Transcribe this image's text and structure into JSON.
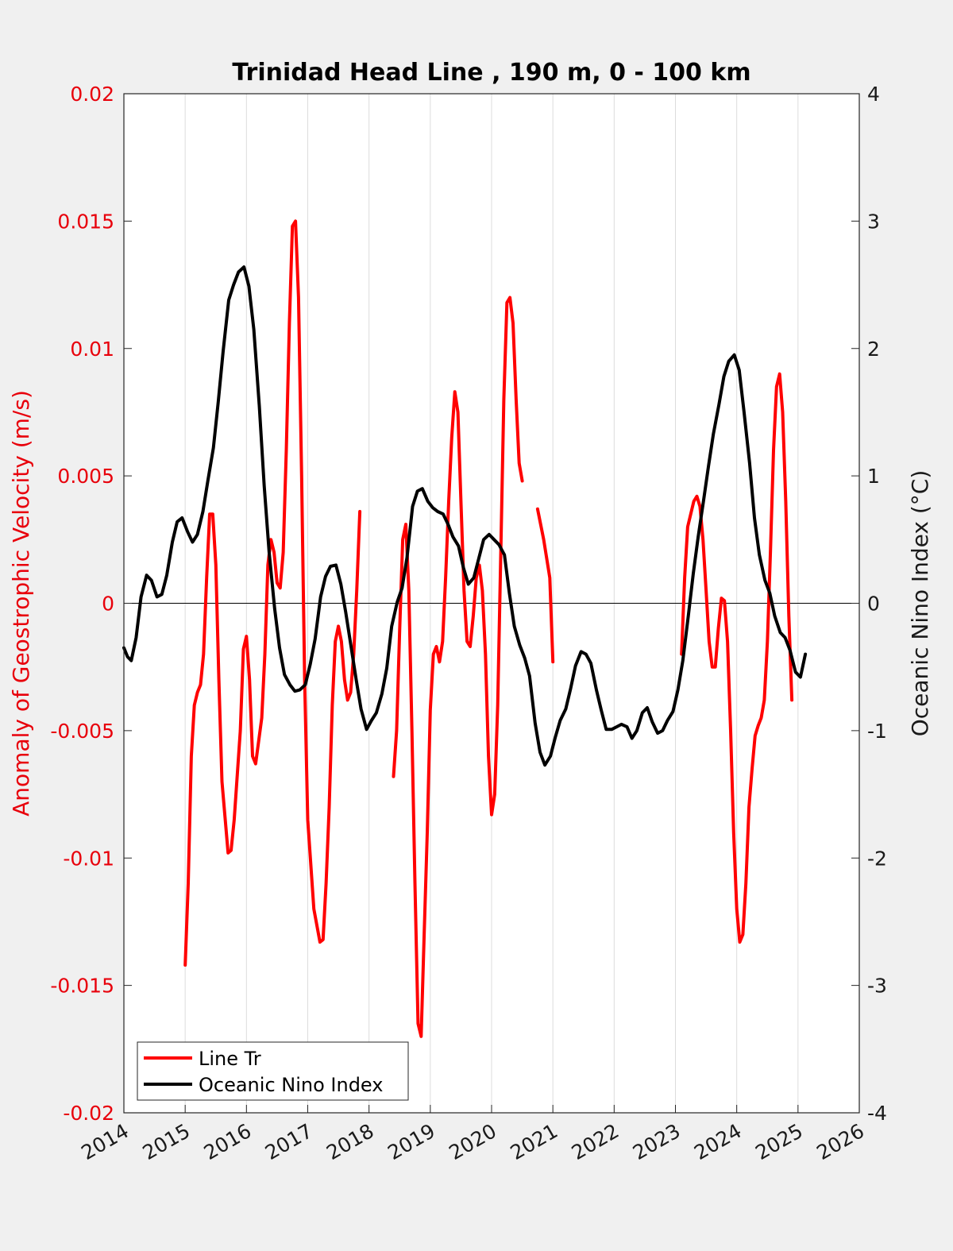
{
  "chart_data": {
    "type": "line",
    "title": "Trinidad Head Line , 190 m, 0 - 100 km",
    "ylabel_left": "Anomaly of Geostrophic Velocity (m/s)",
    "ylabel_right": "Oceanic Nino Index (°C)",
    "xlabel": "",
    "xlim": [
      2014,
      2026
    ],
    "ylim_left": [
      -0.02,
      0.02
    ],
    "ylim_right": [
      -4,
      4
    ],
    "x_ticks": [
      "2014",
      "2015",
      "2016",
      "2017",
      "2018",
      "2019",
      "2020",
      "2021",
      "2022",
      "2023",
      "2024",
      "2025",
      "2026"
    ],
    "y_ticks_left": [
      "0.02",
      "0.015",
      "0.01",
      "0.005",
      "0",
      "-0.005",
      "-0.01",
      "-0.015",
      "-0.02"
    ],
    "y_ticks_right": [
      "4",
      "3",
      "2",
      "1",
      "0",
      "-1",
      "-2",
      "-3",
      "-4"
    ],
    "grid": "vertical",
    "legend_position": "bottom-left",
    "colors": {
      "line_tr": "#ff0000",
      "oni": "#000000",
      "left_axis": "#e8000b"
    },
    "series": [
      {
        "name": "Line Tr",
        "axis": "left",
        "segments": [
          [
            [
              2015.0,
              -0.0142
            ],
            [
              2015.05,
              -0.011
            ],
            [
              2015.1,
              -0.006
            ],
            [
              2015.15,
              -0.004
            ],
            [
              2015.2,
              -0.0035
            ],
            [
              2015.25,
              -0.0032
            ],
            [
              2015.3,
              -0.002
            ],
            [
              2015.35,
              0.001
            ],
            [
              2015.4,
              0.0035
            ],
            [
              2015.45,
              0.0035
            ],
            [
              2015.5,
              0.0015
            ],
            [
              2015.55,
              -0.003
            ],
            [
              2015.6,
              -0.007
            ],
            [
              2015.7,
              -0.0098
            ],
            [
              2015.75,
              -0.0097
            ],
            [
              2015.8,
              -0.0085
            ],
            [
              2015.9,
              -0.005
            ],
            [
              2015.95,
              -0.0018
            ],
            [
              2016.0,
              -0.0013
            ],
            [
              2016.05,
              -0.003
            ],
            [
              2016.1,
              -0.006
            ],
            [
              2016.15,
              -0.0063
            ],
            [
              2016.25,
              -0.0045
            ],
            [
              2016.3,
              -0.002
            ],
            [
              2016.35,
              0.0015
            ],
            [
              2016.4,
              0.0025
            ],
            [
              2016.45,
              0.002
            ],
            [
              2016.5,
              0.0008
            ],
            [
              2016.55,
              0.0006
            ],
            [
              2016.6,
              0.002
            ],
            [
              2016.65,
              0.006
            ],
            [
              2016.7,
              0.011
            ],
            [
              2016.75,
              0.0148
            ],
            [
              2016.8,
              0.015
            ],
            [
              2016.85,
              0.012
            ],
            [
              2016.9,
              0.005
            ],
            [
              2016.95,
              -0.003
            ],
            [
              2017.0,
              -0.0085
            ],
            [
              2017.1,
              -0.012
            ],
            [
              2017.2,
              -0.0133
            ],
            [
              2017.25,
              -0.0132
            ],
            [
              2017.3,
              -0.011
            ],
            [
              2017.35,
              -0.008
            ],
            [
              2017.4,
              -0.004
            ],
            [
              2017.45,
              -0.0015
            ],
            [
              2017.5,
              -0.0009
            ],
            [
              2017.55,
              -0.0015
            ],
            [
              2017.6,
              -0.003
            ],
            [
              2017.65,
              -0.0038
            ],
            [
              2017.7,
              -0.0035
            ],
            [
              2017.75,
              -0.002
            ],
            [
              2017.8,
              0.0005
            ],
            [
              2017.85,
              0.0036
            ]
          ],
          [
            [
              2018.4,
              -0.0068
            ],
            [
              2018.45,
              -0.005
            ],
            [
              2018.5,
              -0.001
            ],
            [
              2018.55,
              0.0025
            ],
            [
              2018.6,
              0.0031
            ],
            [
              2018.65,
              0.0005
            ],
            [
              2018.7,
              -0.005
            ],
            [
              2018.75,
              -0.011
            ],
            [
              2018.8,
              -0.0165
            ],
            [
              2018.85,
              -0.017
            ],
            [
              2018.9,
              -0.013
            ],
            [
              2018.95,
              -0.009
            ],
            [
              2019.0,
              -0.0042
            ],
            [
              2019.05,
              -0.002
            ],
            [
              2019.1,
              -0.0017
            ],
            [
              2019.15,
              -0.0023
            ],
            [
              2019.2,
              -0.0015
            ],
            [
              2019.25,
              0.001
            ],
            [
              2019.3,
              0.004
            ],
            [
              2019.35,
              0.0065
            ],
            [
              2019.4,
              0.0083
            ],
            [
              2019.45,
              0.0075
            ],
            [
              2019.5,
              0.004
            ],
            [
              2019.55,
              0.0005
            ],
            [
              2019.6,
              -0.0015
            ],
            [
              2019.65,
              -0.0017
            ],
            [
              2019.7,
              -0.0005
            ],
            [
              2019.75,
              0.001
            ],
            [
              2019.8,
              0.0015
            ],
            [
              2019.85,
              0.0005
            ],
            [
              2019.9,
              -0.002
            ],
            [
              2019.95,
              -0.006
            ],
            [
              2020.0,
              -0.0083
            ],
            [
              2020.05,
              -0.0075
            ],
            [
              2020.1,
              -0.004
            ],
            [
              2020.15,
              0.002
            ],
            [
              2020.2,
              0.008
            ],
            [
              2020.25,
              0.0118
            ],
            [
              2020.3,
              0.012
            ],
            [
              2020.35,
              0.011
            ],
            [
              2020.4,
              0.008
            ],
            [
              2020.45,
              0.0055
            ],
            [
              2020.5,
              0.0048
            ]
          ],
          [
            [
              2020.75,
              0.0037
            ],
            [
              2020.85,
              0.0025
            ],
            [
              2020.95,
              0.001
            ],
            [
              2021.0,
              -0.0023
            ]
          ],
          [
            [
              2023.1,
              -0.002
            ],
            [
              2023.15,
              0.001
            ],
            [
              2023.2,
              0.003
            ],
            [
              2023.3,
              0.004
            ],
            [
              2023.35,
              0.0042
            ],
            [
              2023.4,
              0.0038
            ],
            [
              2023.45,
              0.0025
            ],
            [
              2023.5,
              0.0005
            ],
            [
              2023.55,
              -0.0015
            ],
            [
              2023.6,
              -0.0025
            ],
            [
              2023.65,
              -0.0025
            ],
            [
              2023.7,
              -0.001
            ],
            [
              2023.75,
              0.0002
            ],
            [
              2023.8,
              0.0001
            ],
            [
              2023.85,
              -0.0015
            ],
            [
              2023.9,
              -0.005
            ],
            [
              2023.95,
              -0.009
            ],
            [
              2024.0,
              -0.012
            ],
            [
              2024.05,
              -0.0133
            ],
            [
              2024.1,
              -0.013
            ],
            [
              2024.15,
              -0.011
            ],
            [
              2024.2,
              -0.008
            ],
            [
              2024.25,
              -0.0065
            ],
            [
              2024.3,
              -0.0052
            ],
            [
              2024.35,
              -0.0048
            ],
            [
              2024.4,
              -0.0045
            ],
            [
              2024.45,
              -0.0038
            ],
            [
              2024.5,
              -0.0015
            ],
            [
              2024.55,
              0.002
            ],
            [
              2024.6,
              0.006
            ],
            [
              2024.65,
              0.0085
            ],
            [
              2024.7,
              0.009
            ],
            [
              2024.75,
              0.0075
            ],
            [
              2024.8,
              0.004
            ],
            [
              2024.85,
              -0.0005
            ],
            [
              2024.9,
              -0.0038
            ]
          ]
        ]
      },
      {
        "name": "Oceanic Nino Index",
        "axis": "right",
        "points": [
          [
            2014.0,
            -0.35
          ],
          [
            2014.06,
            -0.42
          ],
          [
            2014.12,
            -0.45
          ],
          [
            2014.2,
            -0.27
          ],
          [
            2014.28,
            0.05
          ],
          [
            2014.37,
            0.22
          ],
          [
            2014.45,
            0.18
          ],
          [
            2014.54,
            0.05
          ],
          [
            2014.62,
            0.07
          ],
          [
            2014.7,
            0.22
          ],
          [
            2014.79,
            0.48
          ],
          [
            2014.87,
            0.64
          ],
          [
            2014.95,
            0.67
          ],
          [
            2015.04,
            0.56
          ],
          [
            2015.12,
            0.48
          ],
          [
            2015.2,
            0.54
          ],
          [
            2015.29,
            0.72
          ],
          [
            2015.37,
            0.96
          ],
          [
            2015.46,
            1.22
          ],
          [
            2015.54,
            1.58
          ],
          [
            2015.62,
            1.98
          ],
          [
            2015.71,
            2.38
          ],
          [
            2015.79,
            2.5
          ],
          [
            2015.87,
            2.6
          ],
          [
            2015.96,
            2.64
          ],
          [
            2016.04,
            2.49
          ],
          [
            2016.12,
            2.15
          ],
          [
            2016.21,
            1.55
          ],
          [
            2016.29,
            0.92
          ],
          [
            2016.37,
            0.4
          ],
          [
            2016.46,
            -0.04
          ],
          [
            2016.54,
            -0.35
          ],
          [
            2016.62,
            -0.56
          ],
          [
            2016.71,
            -0.64
          ],
          [
            2016.79,
            -0.69
          ],
          [
            2016.87,
            -0.68
          ],
          [
            2016.96,
            -0.64
          ],
          [
            2017.04,
            -0.48
          ],
          [
            2017.12,
            -0.28
          ],
          [
            2017.21,
            0.05
          ],
          [
            2017.29,
            0.21
          ],
          [
            2017.37,
            0.29
          ],
          [
            2017.46,
            0.3
          ],
          [
            2017.54,
            0.15
          ],
          [
            2017.62,
            -0.07
          ],
          [
            2017.71,
            -0.35
          ],
          [
            2017.79,
            -0.6
          ],
          [
            2017.87,
            -0.83
          ],
          [
            2017.96,
            -0.99
          ],
          [
            2018.04,
            -0.92
          ],
          [
            2018.12,
            -0.86
          ],
          [
            2018.21,
            -0.71
          ],
          [
            2018.29,
            -0.51
          ],
          [
            2018.37,
            -0.18
          ],
          [
            2018.46,
            0.01
          ],
          [
            2018.54,
            0.12
          ],
          [
            2018.62,
            0.36
          ],
          [
            2018.71,
            0.76
          ],
          [
            2018.79,
            0.88
          ],
          [
            2018.87,
            0.9
          ],
          [
            2018.96,
            0.8
          ],
          [
            2019.04,
            0.75
          ],
          [
            2019.12,
            0.72
          ],
          [
            2019.21,
            0.7
          ],
          [
            2019.29,
            0.62
          ],
          [
            2019.37,
            0.52
          ],
          [
            2019.46,
            0.45
          ],
          [
            2019.54,
            0.28
          ],
          [
            2019.62,
            0.15
          ],
          [
            2019.71,
            0.2
          ],
          [
            2019.79,
            0.35
          ],
          [
            2019.87,
            0.5
          ],
          [
            2019.96,
            0.54
          ],
          [
            2020.04,
            0.5
          ],
          [
            2020.12,
            0.46
          ],
          [
            2020.21,
            0.38
          ],
          [
            2020.29,
            0.08
          ],
          [
            2020.37,
            -0.18
          ],
          [
            2020.46,
            -0.33
          ],
          [
            2020.54,
            -0.43
          ],
          [
            2020.62,
            -0.57
          ],
          [
            2020.71,
            -0.94
          ],
          [
            2020.79,
            -1.17
          ],
          [
            2020.87,
            -1.27
          ],
          [
            2020.96,
            -1.2
          ],
          [
            2021.04,
            -1.05
          ],
          [
            2021.12,
            -0.92
          ],
          [
            2021.21,
            -0.83
          ],
          [
            2021.29,
            -0.67
          ],
          [
            2021.37,
            -0.49
          ],
          [
            2021.46,
            -0.38
          ],
          [
            2021.54,
            -0.4
          ],
          [
            2021.62,
            -0.47
          ],
          [
            2021.71,
            -0.68
          ],
          [
            2021.79,
            -0.84
          ],
          [
            2021.87,
            -0.99
          ],
          [
            2021.96,
            -0.99
          ],
          [
            2022.04,
            -0.97
          ],
          [
            2022.12,
            -0.95
          ],
          [
            2022.21,
            -0.97
          ],
          [
            2022.29,
            -1.06
          ],
          [
            2022.37,
            -1.0
          ],
          [
            2022.46,
            -0.86
          ],
          [
            2022.54,
            -0.82
          ],
          [
            2022.62,
            -0.93
          ],
          [
            2022.71,
            -1.02
          ],
          [
            2022.79,
            -1.0
          ],
          [
            2022.87,
            -0.92
          ],
          [
            2022.96,
            -0.85
          ],
          [
            2023.04,
            -0.68
          ],
          [
            2023.12,
            -0.45
          ],
          [
            2023.21,
            -0.1
          ],
          [
            2023.29,
            0.23
          ],
          [
            2023.37,
            0.52
          ],
          [
            2023.46,
            0.81
          ],
          [
            2023.54,
            1.08
          ],
          [
            2023.62,
            1.33
          ],
          [
            2023.71,
            1.56
          ],
          [
            2023.79,
            1.78
          ],
          [
            2023.87,
            1.9
          ],
          [
            2023.96,
            1.95
          ],
          [
            2024.04,
            1.83
          ],
          [
            2024.12,
            1.5
          ],
          [
            2024.21,
            1.1
          ],
          [
            2024.29,
            0.67
          ],
          [
            2024.37,
            0.38
          ],
          [
            2024.46,
            0.18
          ],
          [
            2024.54,
            0.08
          ],
          [
            2024.62,
            -0.1
          ],
          [
            2024.71,
            -0.23
          ],
          [
            2024.79,
            -0.27
          ],
          [
            2024.87,
            -0.37
          ],
          [
            2024.96,
            -0.54
          ],
          [
            2025.04,
            -0.58
          ],
          [
            2025.12,
            -0.4
          ]
        ]
      }
    ]
  }
}
